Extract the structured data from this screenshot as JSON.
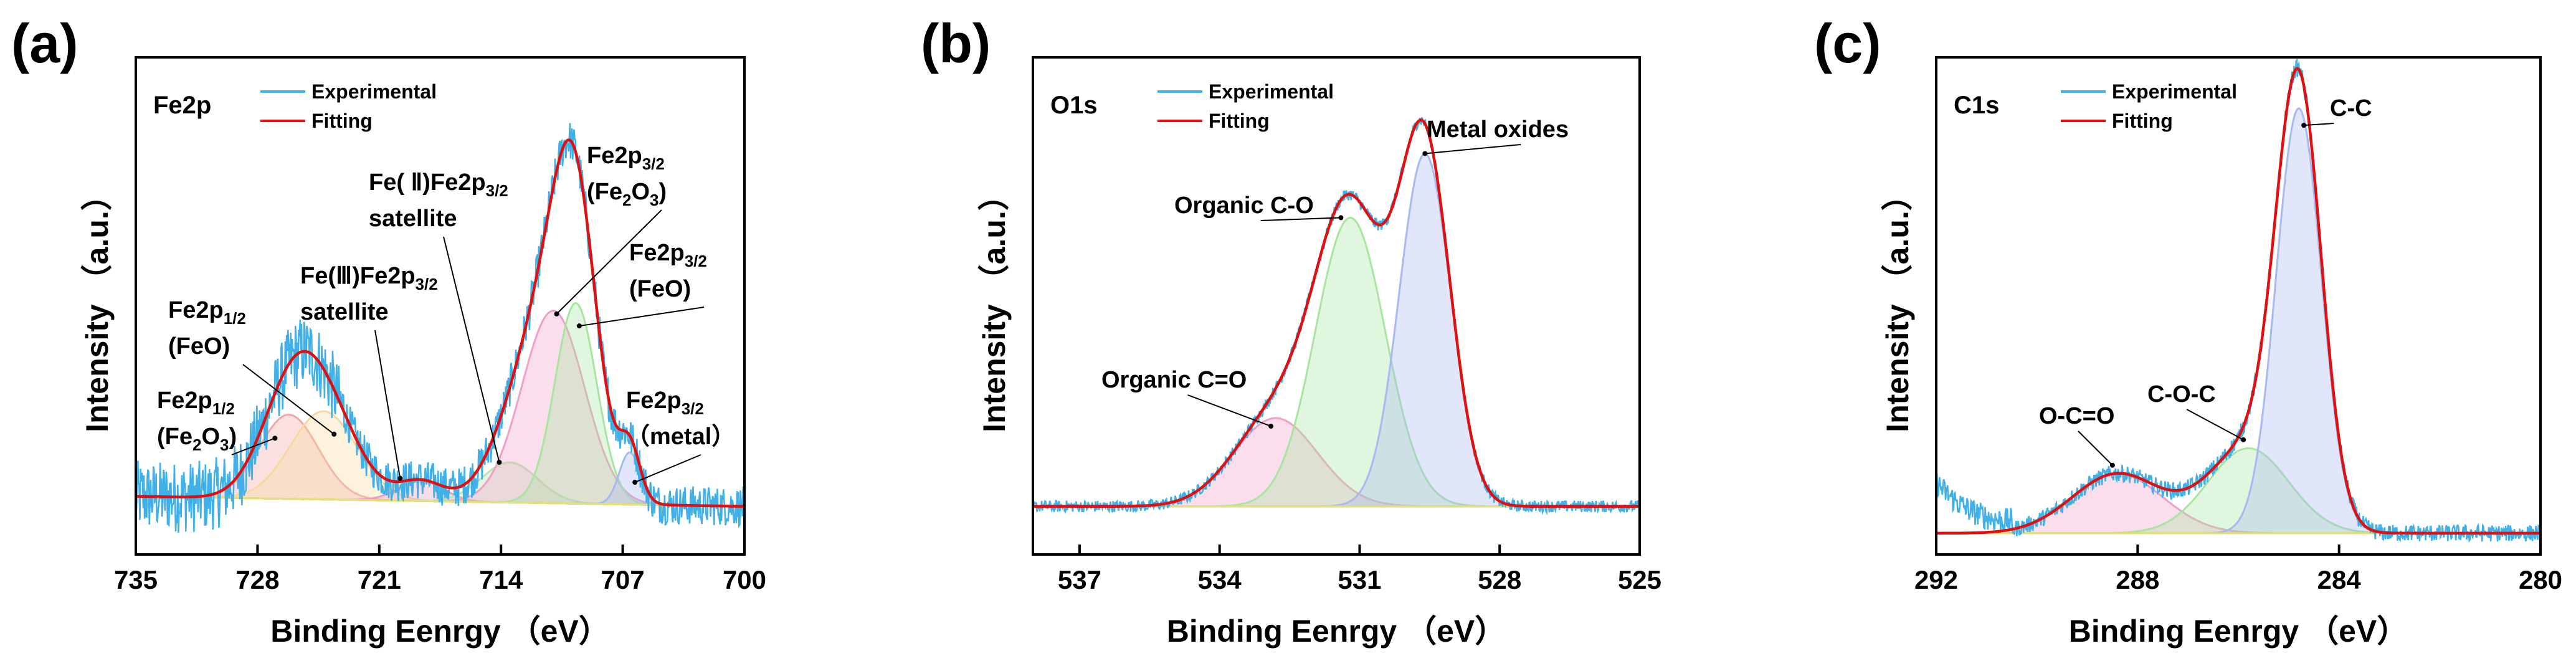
{
  "chart_data": [
    {
      "type": "line",
      "panel": "(a)",
      "core_level": "Fe2p",
      "xlabel": "Binding Eenrgy （eV）",
      "ylabel": "Intensity （a.u.）",
      "xlim": [
        735,
        700
      ],
      "x_reversed": true,
      "xticks": [
        735,
        728,
        721,
        714,
        707,
        700
      ],
      "ylim": [
        -0.12,
        1.12
      ],
      "legend": [
        "Experimental",
        "Fitting"
      ],
      "legend_position": "top-left",
      "baseline": [
        [
          735,
          0.0
        ],
        [
          700,
          0.0
        ]
      ],
      "components": [
        {
          "center": 726.2,
          "height": 0.21,
          "width": 1.7,
          "color": "#f4a6a6"
        },
        {
          "center": 724.2,
          "height": 0.22,
          "width": 1.9,
          "color": "#f7d9a0"
        },
        {
          "center": 718.6,
          "height": 0.05,
          "width": 1.3,
          "color": "#e8a0c0"
        },
        {
          "center": 713.5,
          "height": 0.1,
          "width": 1.6,
          "color": "#b8e6b0"
        },
        {
          "center": 711.0,
          "height": 0.48,
          "width": 1.8,
          "color": "#f0a0c8"
        },
        {
          "center": 709.7,
          "height": 0.5,
          "width": 1.2,
          "color": "#a8e6a0"
        },
        {
          "center": 706.6,
          "height": 0.13,
          "width": 0.6,
          "color": "#a8b8f0"
        }
      ],
      "annotations": [
        {
          "lines": [
            "Fe2p",
            "1/2",
            "(Fe",
            "2",
            "O",
            "3",
            ")"
          ],
          "at": [
            727.0,
            0.17
          ]
        },
        {
          "lines": [
            "Fe2p",
            "1/2",
            "(FeO)"
          ],
          "at": [
            723.6,
            0.18
          ]
        },
        {
          "lines": [
            "Fe(Ⅲ)Fe2p",
            "3/2",
            "satellite"
          ],
          "at": [
            719.8,
            0.07
          ]
        },
        {
          "lines": [
            "Fe( Ⅱ)Fe2p",
            "3/2",
            "satellite"
          ],
          "at": [
            714.1,
            0.11
          ]
        },
        {
          "lines": [
            "Fe2p",
            "3/2",
            "(Fe",
            "2",
            "O",
            "3",
            ")"
          ],
          "at": [
            710.8,
            0.48
          ]
        },
        {
          "lines": [
            "Fe2p",
            "3/2",
            "(FeO)"
          ],
          "at": [
            709.5,
            0.45
          ]
        },
        {
          "lines": [
            "Fe2p",
            "3/2",
            "（metal）"
          ],
          "at": [
            706.3,
            0.06
          ]
        }
      ]
    },
    {
      "type": "line",
      "panel": "(b)",
      "core_level": "O1s",
      "xlabel": "Binding Eenrgy （eV）",
      "ylabel": "Intensity （a.u.）",
      "xlim": [
        538,
        525
      ],
      "x_reversed": true,
      "xticks": [
        537,
        534,
        531,
        528,
        525
      ],
      "ylim": [
        -0.12,
        1.12
      ],
      "legend": [
        "Experimental",
        "Fitting"
      ],
      "legend_position": "top-left",
      "components": [
        {
          "center": 532.8,
          "height": 0.22,
          "width": 0.9,
          "color": "#f0a0c8"
        },
        {
          "center": 531.2,
          "height": 0.72,
          "width": 0.75,
          "color": "#a8e6a0"
        },
        {
          "center": 529.6,
          "height": 0.88,
          "width": 0.55,
          "color": "#a8b8f0"
        }
      ],
      "annotations": [
        {
          "text": "Organic C=O",
          "at": [
            532.9,
            0.2
          ]
        },
        {
          "text": "Organic C-O",
          "at": [
            531.4,
            0.72
          ]
        },
        {
          "text": "Metal oxides",
          "at": [
            529.6,
            0.88
          ]
        }
      ]
    },
    {
      "type": "line",
      "panel": "(c)",
      "core_level": "C1s",
      "xlabel": "Binding Eenrgy （eV）",
      "ylabel": "Intensity （a.u.）",
      "xlim": [
        292,
        280
      ],
      "x_reversed": true,
      "xticks": [
        292,
        288,
        284,
        280
      ],
      "ylim": [
        -0.05,
        1.12
      ],
      "legend": [
        "Experimental",
        "Fitting"
      ],
      "legend_position": "top-left",
      "components": [
        {
          "center": 288.4,
          "height": 0.14,
          "width": 0.9,
          "color": "#f0a0c8"
        },
        {
          "center": 285.8,
          "height": 0.2,
          "width": 0.8,
          "color": "#a8e6a0"
        },
        {
          "center": 284.8,
          "height": 1.0,
          "width": 0.45,
          "color": "#a8b8f0"
        }
      ],
      "annotations": [
        {
          "text": "O-C=O",
          "at": [
            288.5,
            0.16
          ]
        },
        {
          "text": "C-O-C",
          "at": [
            285.9,
            0.22
          ]
        },
        {
          "text": "C-C",
          "at": [
            284.7,
            0.96
          ]
        }
      ]
    }
  ],
  "colors": {
    "experimental": "#3fb0e8",
    "fitting": "#e01010",
    "baseline": "#e8e070",
    "axis": "#000000"
  }
}
